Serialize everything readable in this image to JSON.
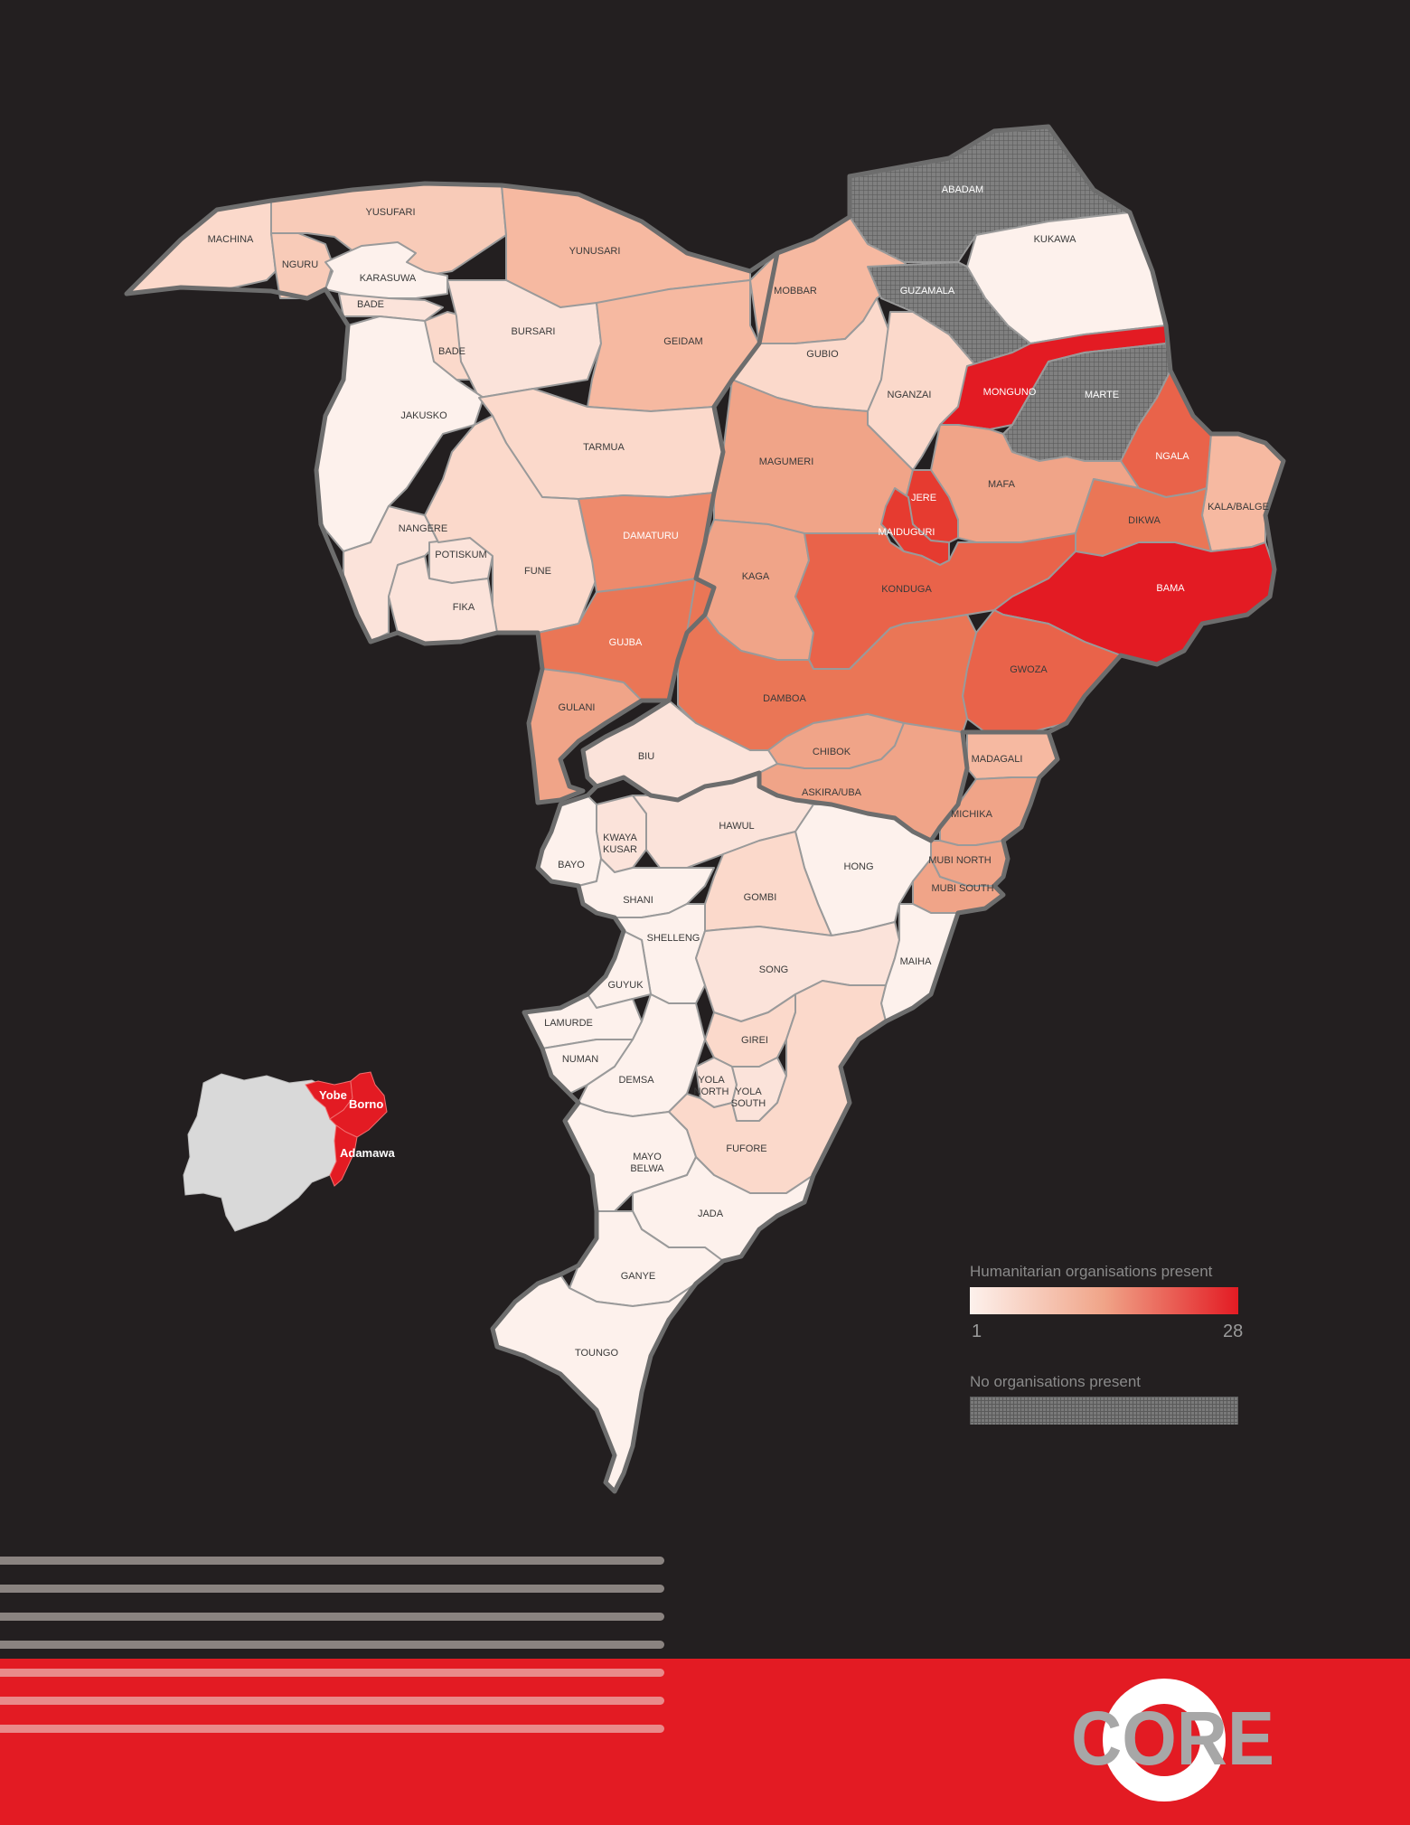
{
  "map": {
    "colors": {
      "background": "#231f20",
      "scale_low": "#fdf1ec",
      "scale_high": "#e31b23",
      "no_orgs": "#7a7a7a",
      "footer": "#e31b23"
    },
    "lgas": [
      {
        "id": "yusufari",
        "label": "YUSUFARI"
      },
      {
        "id": "machina",
        "label": "MACHINA"
      },
      {
        "id": "nguru",
        "label": "NGURU"
      },
      {
        "id": "karasuwa",
        "label": "KARASUWA"
      },
      {
        "id": "bade",
        "label": "BADE"
      },
      {
        "id": "yunusari",
        "label": "YUNUSARI"
      },
      {
        "id": "bade2",
        "label": "BADE"
      },
      {
        "id": "bursari",
        "label": "BURSARI"
      },
      {
        "id": "geidam",
        "label": "GEIDAM"
      },
      {
        "id": "jakusko",
        "label": "JAKUSKO"
      },
      {
        "id": "tarmua",
        "label": "TARMUA"
      },
      {
        "id": "nangere",
        "label": "NANGERE"
      },
      {
        "id": "potiskum",
        "label": "POTISKUM"
      },
      {
        "id": "fune",
        "label": "FUNE"
      },
      {
        "id": "fika",
        "label": "FIKA"
      },
      {
        "id": "damaturu",
        "label": "DAMATURU"
      },
      {
        "id": "gujba",
        "label": "GUJBA"
      },
      {
        "id": "gulani",
        "label": "GULANI"
      },
      {
        "id": "abadam",
        "label": "ABADAM"
      },
      {
        "id": "kukawa",
        "label": "KUKAWA"
      },
      {
        "id": "mobbar",
        "label": "MOBBAR"
      },
      {
        "id": "guzamala",
        "label": "GUZAMALA"
      },
      {
        "id": "gubio",
        "label": "GUBIO"
      },
      {
        "id": "nganzai",
        "label": "NGANZAI"
      },
      {
        "id": "monguno",
        "label": "MONGUNO"
      },
      {
        "id": "marte",
        "label": "MARTE"
      },
      {
        "id": "magumeri",
        "label": "MAGUMERI"
      },
      {
        "id": "ngala",
        "label": "NGALA"
      },
      {
        "id": "mafa",
        "label": "MAFA"
      },
      {
        "id": "jere",
        "label": "JERE"
      },
      {
        "id": "maiduguri",
        "label": "MAIDUGURI"
      },
      {
        "id": "kalabalge",
        "label": "KALA/BALGE"
      },
      {
        "id": "dikwa",
        "label": "DIKWA"
      },
      {
        "id": "kaga",
        "label": "KAGA"
      },
      {
        "id": "konduga",
        "label": "KONDUGA"
      },
      {
        "id": "bama",
        "label": "BAMA"
      },
      {
        "id": "gwoza",
        "label": "GWOZA"
      },
      {
        "id": "damboa",
        "label": "DAMBOA"
      },
      {
        "id": "chibok",
        "label": "CHIBOK"
      },
      {
        "id": "biu",
        "label": "BIU"
      },
      {
        "id": "madagali",
        "label": "MADAGALI"
      },
      {
        "id": "askirauba",
        "label": "ASKIRA/UBA"
      },
      {
        "id": "michika",
        "label": "MICHIKA"
      },
      {
        "id": "kwayakusar",
        "label": "KWAYA KUSAR"
      },
      {
        "id": "hawul",
        "label": "HAWUL"
      },
      {
        "id": "bayo",
        "label": "BAYO"
      },
      {
        "id": "hong",
        "label": "HONG"
      },
      {
        "id": "mubinorth",
        "label": "MUBI NORTH"
      },
      {
        "id": "mubisouth",
        "label": "MUBI SOUTH"
      },
      {
        "id": "shani",
        "label": "SHANI"
      },
      {
        "id": "gombi",
        "label": "GOMBI"
      },
      {
        "id": "shelleng",
        "label": "SHELLENG"
      },
      {
        "id": "song",
        "label": "SONG"
      },
      {
        "id": "maiha",
        "label": "MAIHA"
      },
      {
        "id": "guyuk",
        "label": "GUYUK"
      },
      {
        "id": "lamurde",
        "label": "LAMURDE"
      },
      {
        "id": "girei",
        "label": "GIREI"
      },
      {
        "id": "numan",
        "label": "NUMAN"
      },
      {
        "id": "demsa",
        "label": "DEMSA"
      },
      {
        "id": "yolanorth",
        "label": "YOLA NORTH"
      },
      {
        "id": "yolasouth",
        "label": "YOLA SOUTH"
      },
      {
        "id": "fufore",
        "label": "FUFORE"
      },
      {
        "id": "mayobelwa",
        "label": "MAYO BELWA"
      },
      {
        "id": "jada",
        "label": "JADA"
      },
      {
        "id": "ganye",
        "label": "GANYE"
      },
      {
        "id": "toungo",
        "label": "TOUNGO"
      }
    ]
  },
  "inset": {
    "states": [
      {
        "id": "yobe",
        "label": "Yobe"
      },
      {
        "id": "borno",
        "label": "Borno"
      },
      {
        "id": "adamawa",
        "label": "Adamawa"
      }
    ],
    "colors": {
      "country": "#d9d9d9",
      "highlight": "#e31b23"
    }
  },
  "legend": {
    "gradient_title": "Humanitarian organisations present",
    "min": "1",
    "max": "28",
    "no_orgs_title": "No organisations present"
  },
  "branding": {
    "logo_text": "CORE"
  }
}
